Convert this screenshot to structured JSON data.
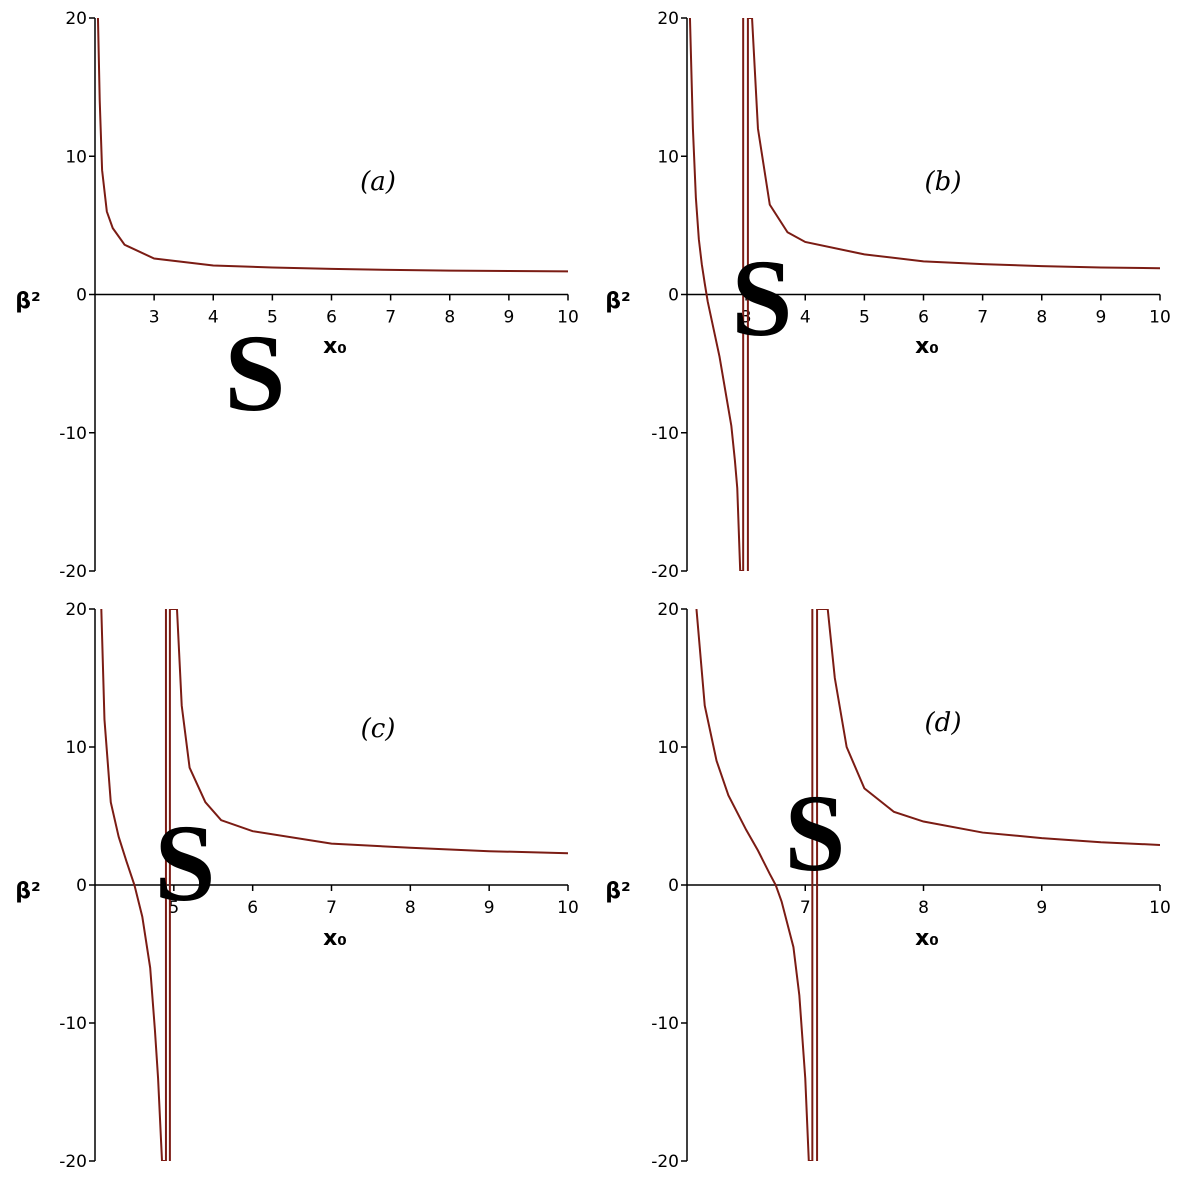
{
  "chart_data": [
    {
      "type": "line",
      "annotation": "(a)",
      "marker": "S",
      "xlabel": "x₀",
      "ylabel": "β²",
      "color": "#7b1c14",
      "x": [
        2.05,
        2.08,
        2.12,
        2.2,
        2.3,
        2.5,
        3,
        4,
        5,
        6,
        7,
        8,
        9,
        10
      ],
      "values": [
        20,
        14,
        9,
        6,
        4.8,
        3.6,
        2.6,
        2.1,
        1.95,
        1.85,
        1.78,
        1.73,
        1.7,
        1.67
      ],
      "xlim": [
        2,
        10
      ],
      "ylim": [
        -20,
        20
      ],
      "xticks": [
        3,
        4,
        5,
        6,
        7,
        8,
        9,
        10
      ],
      "yticks": [
        -20,
        -10,
        0,
        10,
        20
      ]
    },
    {
      "type": "line",
      "annotation": "(b)",
      "marker": "S",
      "xlabel": "x₀",
      "ylabel": "β²",
      "color": "#7b1c14",
      "x": [
        2.05,
        2.1,
        2.15,
        2.2,
        2.25,
        2.3,
        2.35,
        2.45,
        2.55,
        2.65,
        2.75,
        2.81,
        2.85,
        2.9,
        2.95,
        2.95,
        3.0,
        3.03,
        3.03,
        3.1,
        3.2,
        3.4,
        3.7,
        4,
        5,
        6,
        7,
        8,
        9,
        10
      ],
      "values": [
        20,
        12,
        7,
        4,
        2.2,
        0.8,
        -0.5,
        -2.5,
        -4.5,
        -7,
        -9.5,
        -12,
        -14,
        -20,
        -20,
        20,
        null,
        -20,
        20,
        20,
        12,
        6.5,
        4.5,
        3.8,
        2.9,
        2.4,
        2.2,
        2.05,
        1.95,
        1.9
      ],
      "xlim": [
        2,
        10
      ],
      "ylim": [
        -20,
        20
      ],
      "xticks": [
        3,
        4,
        5,
        6,
        7,
        8,
        9,
        10
      ],
      "yticks": [
        -20,
        -10,
        0,
        10,
        20
      ]
    },
    {
      "type": "line",
      "annotation": "(c)",
      "marker": "S",
      "xlabel": "x₀",
      "ylabel": "β²",
      "color": "#7b1c14",
      "x": [
        4.08,
        4.12,
        4.2,
        4.3,
        4.4,
        4.5,
        4.6,
        4.7,
        4.76,
        4.8,
        4.85,
        4.9,
        4.9,
        4.92,
        4.95,
        4.95,
        5.04,
        5.1,
        5.2,
        5.4,
        5.6,
        6,
        7,
        8,
        9,
        10
      ],
      "values": [
        20,
        12,
        6,
        3.5,
        1.7,
        0,
        -2.3,
        -6,
        -10.5,
        -14,
        -20,
        -20,
        20,
        null,
        -20,
        20,
        20,
        13,
        8.5,
        6,
        4.7,
        3.9,
        3,
        2.7,
        2.45,
        2.3
      ],
      "xlim": [
        4,
        10
      ],
      "ylim": [
        -20,
        20
      ],
      "xticks": [
        5,
        6,
        7,
        8,
        9,
        10
      ],
      "yticks": [
        -20,
        -10,
        0,
        10,
        20
      ]
    },
    {
      "type": "line",
      "annotation": "(d)",
      "marker": "S",
      "xlabel": "x₀",
      "ylabel": "β²",
      "color": "#7b1c14",
      "x": [
        6.08,
        6.15,
        6.25,
        6.35,
        6.5,
        6.6,
        6.7,
        6.75,
        6.8,
        6.9,
        6.95,
        7.0,
        7.03,
        7.06,
        7.06,
        7.08,
        7.1,
        7.1,
        7.19,
        7.25,
        7.35,
        7.5,
        7.75,
        8,
        8.5,
        9,
        9.5,
        10
      ],
      "values": [
        20,
        13,
        9,
        6.5,
        4,
        2.5,
        0.8,
        0,
        -1.2,
        -4.5,
        -8,
        -14,
        -20,
        -20,
        20,
        null,
        -20,
        20,
        20,
        15,
        10,
        7,
        5.3,
        4.6,
        3.8,
        3.4,
        3.1,
        2.9
      ],
      "xlim": [
        6,
        10
      ],
      "ylim": [
        -20,
        20
      ],
      "xticks": [
        7,
        8,
        9,
        10
      ],
      "yticks": [
        -20,
        -10,
        0,
        10,
        20
      ]
    }
  ]
}
